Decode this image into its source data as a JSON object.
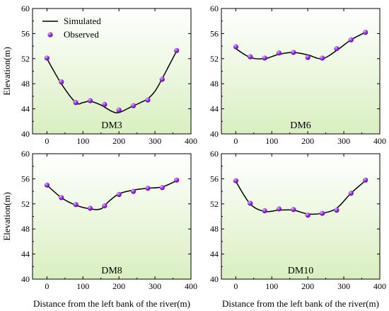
{
  "chart_data": [
    {
      "type": "line",
      "panel_label": "DM3",
      "xlim": [
        -40,
        400
      ],
      "ylim": [
        40,
        60
      ],
      "xticks": [
        0,
        100,
        200,
        300,
        400
      ],
      "yticks": [
        40,
        44,
        48,
        52,
        56,
        60
      ],
      "series": [
        {
          "name": "Simulated",
          "kind": "line",
          "x": [
            0,
            40,
            80,
            100,
            120,
            150,
            180,
            200,
            230,
            260,
            280,
            300,
            320,
            340,
            360
          ],
          "y": [
            52.0,
            48.0,
            45.0,
            45.0,
            45.2,
            44.6,
            43.6,
            43.4,
            44.2,
            45.0,
            45.6,
            46.8,
            48.8,
            51.0,
            53.2
          ]
        },
        {
          "name": "Observed",
          "kind": "scatter",
          "x": [
            0,
            40,
            80,
            120,
            160,
            200,
            240,
            280,
            320,
            360
          ],
          "y": [
            52.1,
            48.3,
            45.0,
            45.3,
            44.7,
            43.8,
            44.5,
            45.4,
            48.7,
            53.3
          ]
        }
      ],
      "legend": {
        "show": true,
        "position": "top-left",
        "entries": [
          "Simulated",
          "Observed"
        ]
      },
      "xlabel": "",
      "ylabel": "Elevation(m)"
    },
    {
      "type": "line",
      "panel_label": "DM6",
      "xlim": [
        -40,
        400
      ],
      "ylim": [
        40,
        60
      ],
      "xticks": [
        0,
        100,
        200,
        300,
        400
      ],
      "yticks": [
        40,
        44,
        48,
        52,
        56,
        60
      ],
      "series": [
        {
          "name": "Simulated",
          "kind": "line",
          "x": [
            0,
            40,
            80,
            120,
            160,
            200,
            240,
            280,
            320,
            360
          ],
          "y": [
            53.6,
            52.2,
            52.0,
            52.7,
            53.0,
            52.6,
            52.0,
            53.3,
            55.0,
            56.2
          ]
        },
        {
          "name": "Observed",
          "kind": "scatter",
          "x": [
            0,
            40,
            80,
            120,
            160,
            200,
            240,
            280,
            320,
            360
          ],
          "y": [
            53.9,
            52.3,
            52.1,
            52.9,
            53.0,
            52.2,
            52.1,
            53.6,
            55.0,
            56.2
          ]
        }
      ],
      "xlabel": "",
      "ylabel": ""
    },
    {
      "type": "line",
      "panel_label": "DM8",
      "xlim": [
        -40,
        400
      ],
      "ylim": [
        40,
        60
      ],
      "xticks": [
        0,
        100,
        200,
        300,
        400
      ],
      "yticks": [
        40,
        44,
        48,
        52,
        56,
        60
      ],
      "series": [
        {
          "name": "Simulated",
          "kind": "line",
          "x": [
            0,
            40,
            80,
            120,
            150,
            170,
            200,
            240,
            280,
            320,
            360
          ],
          "y": [
            55.0,
            53.0,
            51.8,
            51.2,
            51.2,
            52.3,
            53.6,
            54.2,
            54.5,
            54.7,
            55.7
          ]
        },
        {
          "name": "Observed",
          "kind": "scatter",
          "x": [
            0,
            40,
            80,
            120,
            160,
            200,
            240,
            280,
            320,
            360
          ],
          "y": [
            55.0,
            53.0,
            51.9,
            51.3,
            51.7,
            53.5,
            54.0,
            54.5,
            54.6,
            55.8
          ]
        }
      ],
      "xlabel": "Distance from the left bank of the river(m)",
      "ylabel": "Elevation(m)"
    },
    {
      "type": "line",
      "panel_label": "DM10",
      "xlim": [
        -40,
        400
      ],
      "ylim": [
        40,
        60
      ],
      "xticks": [
        0,
        100,
        200,
        300,
        400
      ],
      "yticks": [
        40,
        44,
        48,
        52,
        56,
        60
      ],
      "series": [
        {
          "name": "Simulated",
          "kind": "line",
          "x": [
            0,
            40,
            80,
            120,
            160,
            200,
            240,
            280,
            320,
            360
          ],
          "y": [
            55.6,
            52.0,
            50.8,
            51.0,
            51.0,
            50.4,
            50.5,
            51.3,
            53.7,
            55.7
          ]
        },
        {
          "name": "Observed",
          "kind": "scatter",
          "x": [
            0,
            40,
            80,
            120,
            160,
            200,
            240,
            280,
            320,
            360
          ],
          "y": [
            55.7,
            52.1,
            50.9,
            51.2,
            51.1,
            50.2,
            50.5,
            51.0,
            53.7,
            55.8
          ]
        }
      ],
      "xlabel": "Distance from the left bank of the river(m)",
      "ylabel": ""
    }
  ],
  "colors": {
    "background_top": "#ffffff",
    "background_bottom": "#d9efc0",
    "line": "#000000",
    "marker_light": "#e4b8ff",
    "marker_main": "#9b30f0",
    "marker_dark": "#5a0a99"
  }
}
